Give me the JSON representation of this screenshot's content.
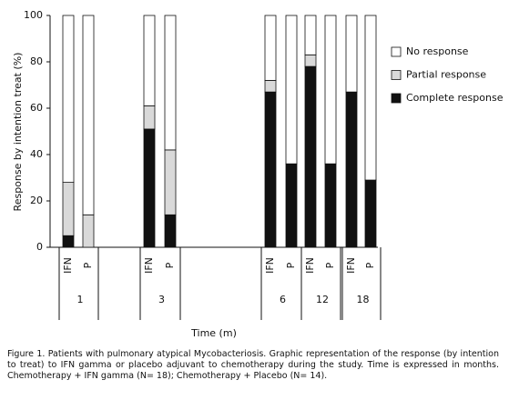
{
  "chart_data": {
    "type": "stacked-bar",
    "y_label": "Response by intention treat (%)",
    "x_label": "Time (m)",
    "categories": [
      "IFN",
      "P",
      "IFN",
      "P",
      "IFN",
      "P",
      "IFN",
      "P",
      "IFN",
      "P"
    ],
    "groups": [
      "1",
      "3",
      "6",
      "12",
      "18"
    ],
    "series": [
      {
        "name": "Complete response",
        "color": "#111111",
        "values": [
          5,
          0,
          51,
          14,
          67,
          36,
          78,
          36,
          67,
          29
        ]
      },
      {
        "name": "Partial response",
        "color": "#d9d9d9",
        "values": [
          23,
          14,
          10,
          28,
          5,
          0,
          5,
          0,
          0,
          0
        ]
      },
      {
        "name": "No response",
        "color": "#ffffff",
        "values": [
          72,
          86,
          39,
          58,
          28,
          64,
          17,
          64,
          33,
          71
        ]
      }
    ],
    "ylim": [
      0,
      100
    ],
    "yticks": [
      0,
      20,
      40,
      60,
      80,
      100
    ],
    "caption": "Figure 1. Patients with pulmonary atypical Mycobacteriosis. Graphic representation of the response (by intention to treat) to IFN gamma or placebo adjuvant to chemotherapy during the study. Time is expressed in months. Chemotherapy + IFN gamma (N= 18); Chemotherapy + Placebo (N= 14)."
  }
}
